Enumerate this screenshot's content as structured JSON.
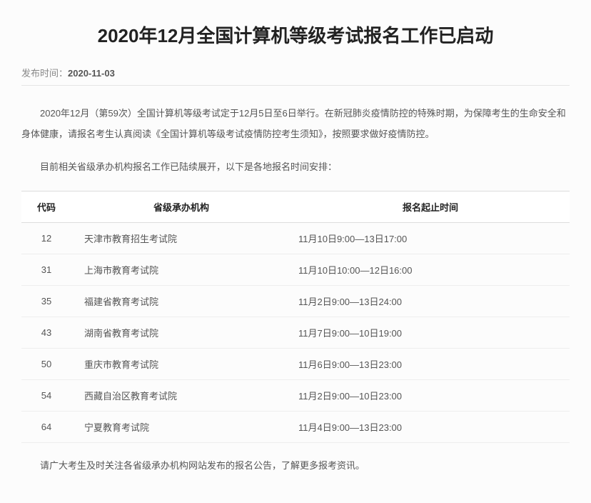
{
  "article": {
    "title": "2020年12月全国计算机等级考试报名工作已启动",
    "meta_label": "发布时间：",
    "publish_date": "2020-11-03",
    "p1": "2020年12月（第59次）全国计算机等级考试定于12月5日至6日举行。在新冠肺炎疫情防控的特殊时期，为保障考生的生命安全和身体健康，请报名考生认真阅读《全国计算机等级考试疫情防控考生须知》，按照要求做好疫情防控。",
    "p2": "目前相关省级承办机构报名工作已陆续展开，以下是各地报名时间安排：",
    "p3": "请广大考生及时关注各省级承办机构网站发布的报名公告，了解更多报考资讯。"
  },
  "table": {
    "headers": {
      "code": "代码",
      "org": "省级承办机构",
      "time": "报名起止时间"
    },
    "rows": [
      {
        "code": "12",
        "org": "天津市教育招生考试院",
        "time": "11月10日9:00—13日17:00"
      },
      {
        "code": "31",
        "org": "上海市教育考试院",
        "time": "11月10日10:00—12日16:00"
      },
      {
        "code": "35",
        "org": "福建省教育考试院",
        "time": "11月2日9:00—13日24:00"
      },
      {
        "code": "43",
        "org": "湖南省教育考试院",
        "time": "11月7日9:00—10日19:00"
      },
      {
        "code": "50",
        "org": "重庆市教育考试院",
        "time": "11月6日9:00—13日23:00"
      },
      {
        "code": "54",
        "org": "西藏自治区教育考试院",
        "time": "11月2日9:00—10日23:00"
      },
      {
        "code": "64",
        "org": "宁夏教育考试院",
        "time": "11月4日9:00—13日23:00"
      }
    ]
  }
}
